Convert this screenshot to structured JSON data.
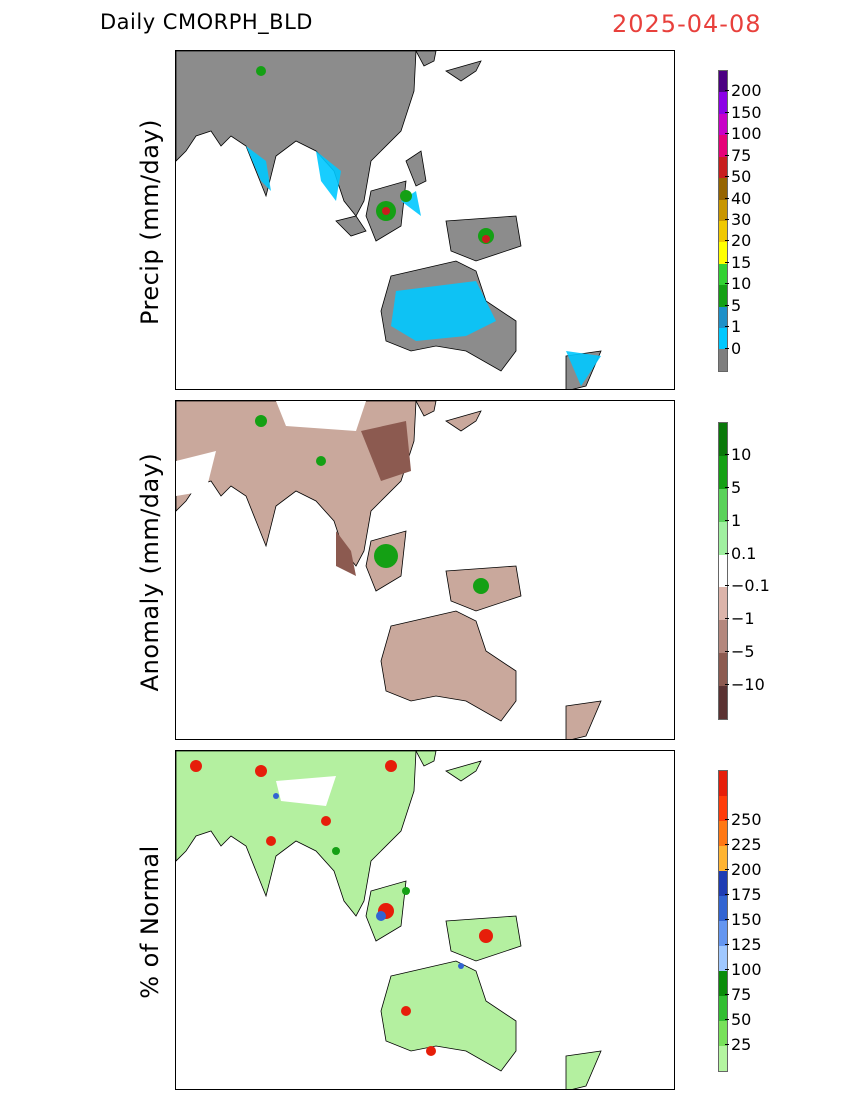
{
  "header": {
    "title": "Daily CMORPH_BLD",
    "date": "2025-04-08",
    "date_color": "#e8403c"
  },
  "panels": [
    {
      "label": "Precip (mm/day)",
      "colorbar": {
        "colors": [
          "#7f7f7f",
          "#00c8ff",
          "#1e90c8",
          "#14a014",
          "#32d232",
          "#ffff00",
          "#f0c800",
          "#c89600",
          "#966400",
          "#c81e1e",
          "#e60078",
          "#c800c8",
          "#8c00e6",
          "#4b0082"
        ],
        "ticks": [
          "0",
          "1",
          "5",
          "10",
          "15",
          "20",
          "30",
          "40",
          "50",
          "75",
          "100",
          "150",
          "200"
        ]
      }
    },
    {
      "label": "Anomaly (mm/day)",
      "colorbar": {
        "colors": [
          "#5a3232",
          "#8c5a50",
          "#b4877d",
          "#dcb4aa",
          "#ffffff",
          "#a0f0a0",
          "#5ad25a",
          "#14a014",
          "#0a780a"
        ],
        "ticks": [
          "−10",
          "−5",
          "−1",
          "−0.1",
          "0.1",
          "1",
          "5",
          "10"
        ]
      }
    },
    {
      "label": "% of Normal",
      "colorbar": {
        "colors": [
          "#b4f5a0",
          "#78e15a",
          "#32be32",
          "#0a8c0a",
          "#a0c8ff",
          "#6496f0",
          "#3264d2",
          "#1e3cb4",
          "#ffb432",
          "#ff7814",
          "#ff3c0a",
          "#e61e0a"
        ],
        "ticks": [
          "25",
          "50",
          "75",
          "100",
          "125",
          "150",
          "175",
          "200",
          "225",
          "250"
        ]
      }
    }
  ],
  "map_palette": {
    "land_dry": "#8c8c8c",
    "anomaly_land": "#c9a89c",
    "normal_land": "#b4f0a0",
    "coast": "#000000"
  }
}
